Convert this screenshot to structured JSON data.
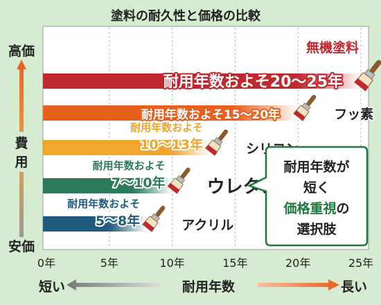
{
  "chart_data": {
    "type": "bar",
    "orientation": "horizontal",
    "title": "塗料の耐久性と価格の比較",
    "xlabel": "耐用年数",
    "xlabel_left": "短い",
    "xlabel_right": "長い",
    "ylabel": "費用",
    "ylabel_top": "高価",
    "ylabel_bottom": "安価",
    "xlim": [
      0,
      25
    ],
    "xticks": [
      {
        "value": 0,
        "label": "0年"
      },
      {
        "value": 5,
        "label": "5年"
      },
      {
        "value": 10,
        "label": "10年"
      },
      {
        "value": 15,
        "label": "15年"
      },
      {
        "value": 20,
        "label": "20年"
      },
      {
        "value": 25,
        "label": "25年"
      }
    ],
    "grid": true,
    "bars": [
      {
        "name": "無機塗料",
        "min": 20,
        "max": 25,
        "range_label_top": "",
        "range_label": "耐用年数およそ20～25年",
        "color": "#c0282f"
      },
      {
        "name": "フッ素",
        "min": 15,
        "max": 20,
        "range_label_top": "",
        "range_label": "耐用年数およそ15～20年",
        "color": "#e8601e"
      },
      {
        "name": "シリコン",
        "min": 10,
        "max": 13,
        "range_label_top": "耐用年数およそ",
        "range_label": "10～13年",
        "color": "#f2a52b"
      },
      {
        "name": "ウレタン",
        "min": 7,
        "max": 10,
        "range_label_top": "耐用年数およそ",
        "range_label": "7～10年",
        "color": "#2f7a5c"
      },
      {
        "name": "アクリル",
        "min": 5,
        "max": 8,
        "range_label_top": "耐用年数およそ",
        "range_label": "5～8年",
        "color": "#1f5b7c"
      }
    ],
    "annotation": {
      "lines": [
        "耐用年数が",
        "短く",
        "価格重視の",
        "選択肢"
      ],
      "highlight_color": "#1a7a3c"
    },
    "colors": {
      "background": "#d6ecd0",
      "plot": "#ffffff",
      "axis_arrow_top": "#e8601e",
      "axis_arrow_bottom": "#888888"
    }
  }
}
